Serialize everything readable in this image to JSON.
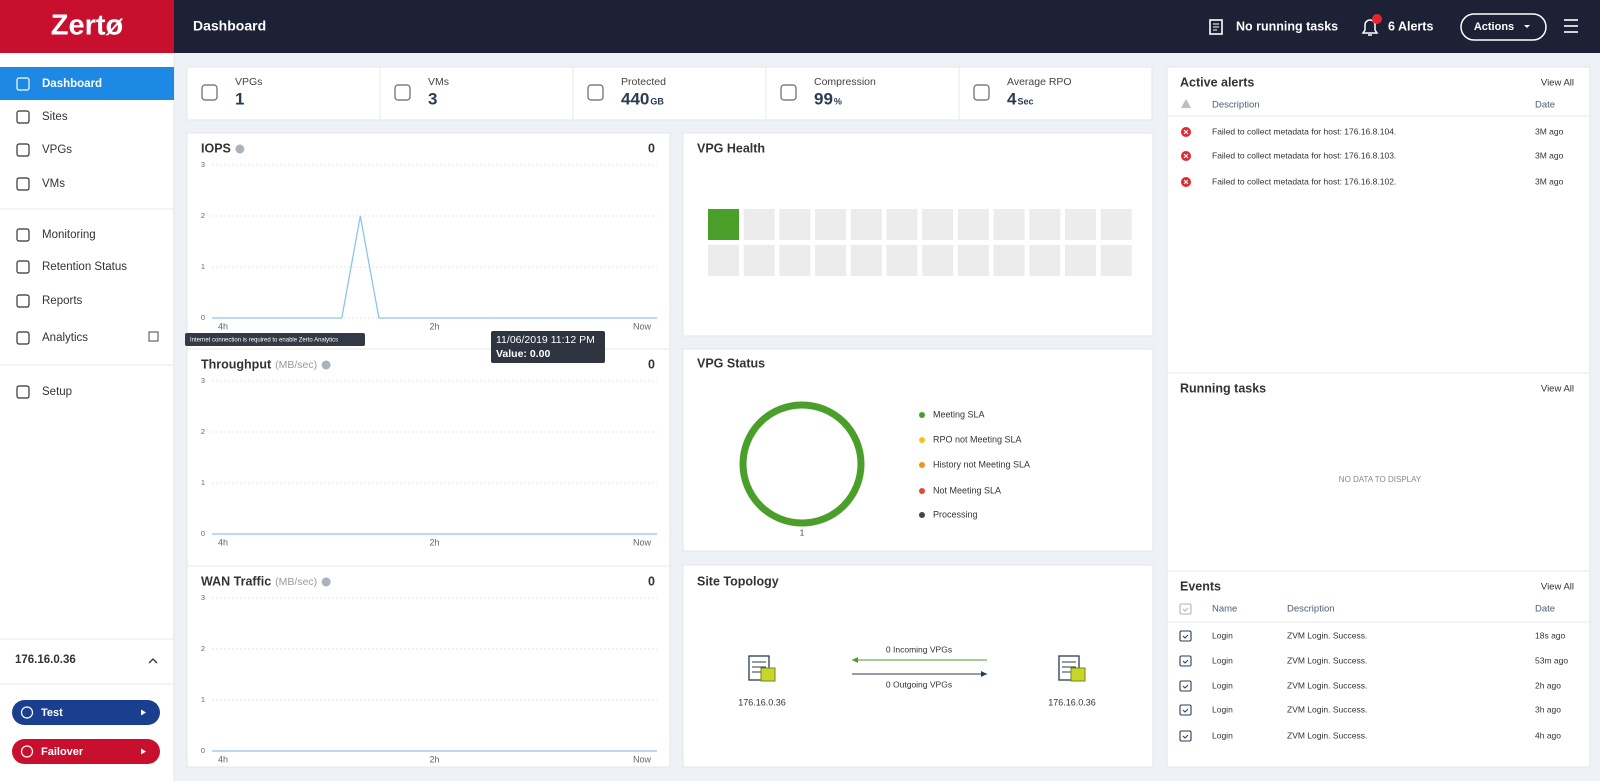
{
  "header": {
    "logo": "Zertø",
    "page_title": "Dashboard",
    "tasks": "No running tasks",
    "alerts": "6 Alerts",
    "actions": "Actions"
  },
  "sidebar": {
    "nav": [
      "Dashboard",
      "Sites",
      "VPGs",
      "VMs",
      "Monitoring",
      "Retention Status",
      "Reports",
      "Analytics",
      "Setup"
    ],
    "site_ip": "176.16.0.36",
    "buttons": [
      "Test",
      "Failover"
    ],
    "analytics_tooltip": "Internet connection is required to enable Zerto Analytics"
  },
  "summary": [
    {
      "label": "VPGs",
      "value": 1
    },
    {
      "label": "VMs",
      "value": 3
    },
    {
      "label": "Protected",
      "value": 440,
      "unit": "GB"
    },
    {
      "label": "Compression",
      "value": 99,
      "unit": "%"
    },
    {
      "label": "Average RPO",
      "value": 4,
      "unit": "Sec"
    }
  ],
  "charts": [
    {
      "title": "IOPS",
      "current": 0,
      "ylim": [
        0,
        3
      ],
      "yticks": [
        0,
        1,
        2,
        3
      ],
      "xticks": [
        "4h",
        "2h",
        "Now"
      ],
      "values": [
        0,
        0,
        0,
        0,
        0,
        0,
        0,
        0,
        2,
        0,
        0,
        0,
        0,
        0,
        0,
        0,
        0,
        0,
        0,
        0,
        0,
        0,
        0,
        0,
        0
      ]
    },
    {
      "title": "Throughput",
      "unit": "(MB/sec)",
      "current": 0,
      "ylim": [
        0,
        3
      ],
      "yticks": [
        0,
        1,
        2,
        3
      ],
      "xticks": [
        "4h",
        "2h",
        "Now"
      ],
      "values": [
        0,
        0,
        0,
        0,
        0,
        0,
        0,
        0,
        0,
        0,
        0,
        0,
        0,
        0,
        0,
        0,
        0,
        0,
        0,
        0,
        0,
        0,
        0,
        0,
        0
      ]
    },
    {
      "title": "WAN Traffic",
      "unit": "(MB/sec)",
      "current": 0,
      "ylim": [
        0,
        3
      ],
      "yticks": [
        0,
        1,
        2,
        3
      ],
      "xticks": [
        "4h",
        "2h",
        "Now"
      ],
      "values": [
        0,
        0,
        0,
        0,
        0,
        0,
        0,
        0,
        0,
        0,
        0,
        0,
        0,
        0,
        0,
        0,
        0,
        0,
        0,
        0,
        0,
        0,
        0,
        0,
        0
      ]
    }
  ],
  "tooltip": {
    "time": "11/06/2019 11:12 PM",
    "value": "Value: 0.00"
  },
  "vpg_health": {
    "title": "VPG Health",
    "tiles": [
      1,
      0,
      0,
      0,
      0,
      0,
      0,
      0,
      0,
      0,
      0,
      0,
      0,
      0,
      0,
      0,
      0,
      0,
      0,
      0,
      0,
      0,
      0,
      0
    ]
  },
  "vpg_status": {
    "title": "VPG Status",
    "total": 1,
    "series": [
      {
        "name": "Meeting SLA",
        "color": "#4a9e2a",
        "value": 1
      },
      {
        "name": "RPO not Meeting SLA",
        "color": "#f4c21b",
        "value": 0
      },
      {
        "name": "History not Meeting SLA",
        "color": "#f0961c",
        "value": 0
      },
      {
        "name": "Not Meeting SLA",
        "color": "#e5483b",
        "value": 0
      },
      {
        "name": "Processing",
        "color": "#454545",
        "value": 0
      }
    ]
  },
  "site_topology": {
    "title": "Site Topology",
    "local": "176.16.0.36",
    "remote": "176.16.0.36",
    "incoming": "0 Incoming VPGs",
    "outgoing": "0 Outgoing VPGs"
  },
  "active_alerts": {
    "title": "Active alerts",
    "view_all": "View All",
    "columns": [
      "Description",
      "Date"
    ],
    "rows": [
      [
        "Failed to collect metadata for host: 176.16.8.104.",
        "3M ago"
      ],
      [
        "Failed to collect metadata for host: 176.16.8.103.",
        "3M ago"
      ],
      [
        "Failed to collect metadata for host: 176.16.8.102.",
        "3M ago"
      ]
    ]
  },
  "running_tasks": {
    "title": "Running tasks",
    "view_all": "View All",
    "empty": "NO DATA TO DISPLAY"
  },
  "events": {
    "title": "Events",
    "view_all": "View All",
    "columns": [
      "Name",
      "Description",
      "Date"
    ],
    "rows": [
      [
        "Login",
        "ZVM Login. Success.",
        "18s ago"
      ],
      [
        "Login",
        "ZVM Login. Success.",
        "53m ago"
      ],
      [
        "Login",
        "ZVM Login. Success.",
        "2h ago"
      ],
      [
        "Login",
        "ZVM Login. Success.",
        "3h ago"
      ],
      [
        "Login",
        "ZVM Login. Success.",
        "4h ago"
      ]
    ]
  }
}
